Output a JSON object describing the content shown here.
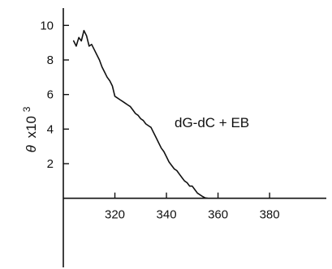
{
  "chart_data": {
    "type": "line",
    "title": "",
    "xlabel": "",
    "ylabel": "θ x10³",
    "ylabel_parts": {
      "symbol": "θ",
      "multiplier": "x10",
      "exponent": "3"
    },
    "annotation": "dG-dC + EB",
    "xlim": [
      300,
      402
    ],
    "ylim": [
      -4,
      11
    ],
    "x_ticks": [
      320,
      340,
      360,
      380
    ],
    "y_ticks": [
      2,
      4,
      6,
      8,
      10
    ],
    "grid": false,
    "legend": "none",
    "series": [
      {
        "x": [
          304,
          305,
          306,
          307,
          308,
          309,
          310,
          311,
          312,
          313,
          314,
          315,
          316,
          317,
          318,
          319,
          320,
          321,
          322,
          323,
          324,
          325,
          326,
          327,
          328,
          329,
          330,
          331,
          332,
          333,
          334,
          335,
          336,
          337,
          338,
          339,
          340,
          341,
          342,
          343,
          344,
          345,
          346,
          347,
          348,
          349,
          350,
          351,
          352,
          353,
          354,
          355,
          356
        ],
        "y": [
          9.1,
          8.8,
          9.3,
          9.1,
          9.7,
          9.4,
          8.8,
          8.9,
          8.6,
          8.3,
          8.0,
          7.6,
          7.3,
          7.0,
          6.8,
          6.5,
          5.9,
          5.8,
          5.7,
          5.6,
          5.5,
          5.4,
          5.3,
          5.1,
          4.9,
          4.8,
          4.6,
          4.5,
          4.3,
          4.2,
          4.1,
          3.8,
          3.5,
          3.2,
          2.9,
          2.7,
          2.4,
          2.1,
          1.9,
          1.7,
          1.6,
          1.4,
          1.2,
          1.0,
          0.9,
          0.7,
          0.7,
          0.5,
          0.3,
          0.2,
          0.1,
          0.02,
          0.0
        ]
      }
    ]
  }
}
